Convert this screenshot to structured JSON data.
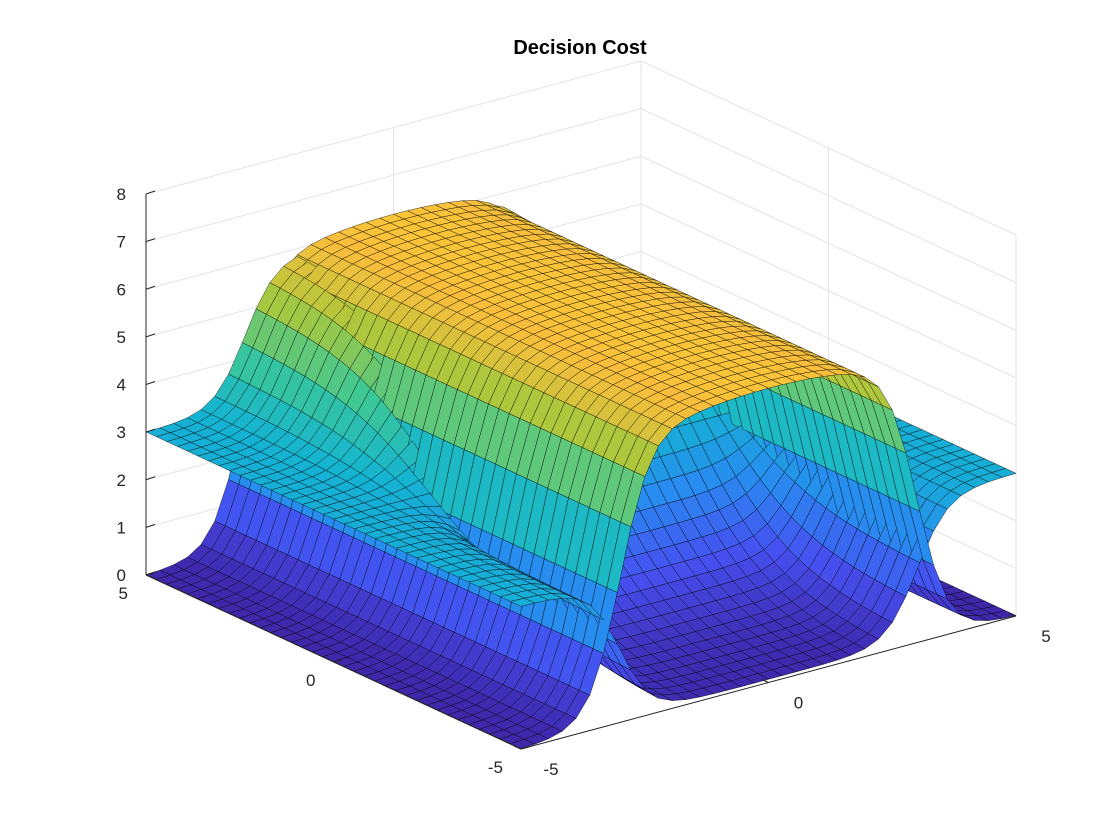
{
  "chart_data": {
    "type": "surface",
    "title": "Decision Cost",
    "xlabel": "",
    "ylabel": "",
    "zlabel": "",
    "xlim": [
      -5,
      5
    ],
    "ylim": [
      -5,
      5
    ],
    "zlim": [
      0,
      8
    ],
    "x_ticks": [
      "-5",
      "0",
      "5"
    ],
    "y_ticks": [
      "-5",
      "0",
      "5"
    ],
    "z_ticks": [
      "0",
      "1",
      "2",
      "3",
      "4",
      "5",
      "6",
      "7",
      "8"
    ],
    "grid": true,
    "colormap": "parula",
    "view": "3-D surface, default MATLAB viewpoint",
    "colors": {
      "colormap_low": "#3e26a8",
      "colormap_mid": "#1fbfb8",
      "colormap_high": "#f9fb15",
      "edge": "#000000",
      "grid": "#e3e3e3",
      "axis": "#262626"
    },
    "surfaces": [
      {
        "name": "",
        "description_levels": {
          "x_less_than_minus_3": 0,
          "x_between_minus_3_and_3": 6.0,
          "x_greater_than_3": 0
        },
        "transition_x": [
          -3,
          3
        ]
      },
      {
        "name": "",
        "description_levels": {
          "x_less_than_minus_3": 3,
          "x_between_minus_3_and_3_y_negative": 0,
          "x_between_minus_3_and_3_y_positive": 6.0,
          "x_greater_than_3": 3
        },
        "transition_x": [
          -3,
          3
        ]
      }
    ]
  }
}
